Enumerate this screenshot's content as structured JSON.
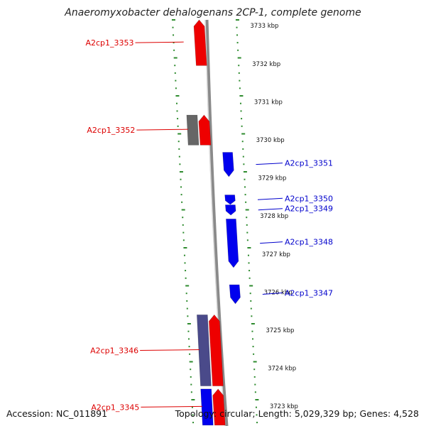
{
  "title": "Anaeromyxobacter dehalogenans 2CP-1, complete genome",
  "footer": {
    "accession": "Accession: NC_011891",
    "summary": "Topology: circular; Length: 5,029,329 bp; Genes: 4,528"
  },
  "colors": {
    "forward_gene": "#ee0000",
    "reverse_gene": "#0000ee",
    "other_gene_grey": "#666666",
    "other_gene_slate": "#4a4a8a",
    "ticks": "#2e8b2e",
    "backbone": "#8a8a8a",
    "forward_label": "#dd0000",
    "reverse_label": "#0000cc"
  },
  "scale": {
    "unit": "kbp",
    "ticks": [
      {
        "kbp": 3733,
        "label": "3733 kbp"
      },
      {
        "kbp": 3732,
        "label": "3732 kbp"
      },
      {
        "kbp": 3731,
        "label": "3731 kbp"
      },
      {
        "kbp": 3730,
        "label": "3730 kbp"
      },
      {
        "kbp": 3729,
        "label": "3729 kbp"
      },
      {
        "kbp": 3728,
        "label": "3728 kbp"
      },
      {
        "kbp": 3727,
        "label": "3727 kbp"
      },
      {
        "kbp": 3726,
        "label": "3726 kbp"
      },
      {
        "kbp": 3725,
        "label": "3725 kbp"
      },
      {
        "kbp": 3724,
        "label": "3724 kbp"
      },
      {
        "kbp": 3723,
        "label": "3723 kbp"
      }
    ]
  },
  "genes": [
    {
      "id": "A2cp1_3353",
      "label": "A2cp1_3353",
      "strand": "forward",
      "lane": 1,
      "start_kbp": 3731.95,
      "end_kbp": 3733.15,
      "color": "red",
      "labeled": true,
      "side": "left"
    },
    {
      "id": "A2cp1_3352",
      "label": "A2cp1_3352",
      "strand": "forward",
      "lane": 1,
      "start_kbp": 3729.86,
      "end_kbp": 3730.65,
      "color": "red",
      "labeled": true,
      "side": "left"
    },
    {
      "id": "A2cp1_3352_companion",
      "label": "",
      "strand": "none",
      "lane": 0,
      "start_kbp": 3729.86,
      "end_kbp": 3730.65,
      "color": "grey",
      "labeled": false,
      "side": "left"
    },
    {
      "id": "A2cp1_3351",
      "label": "A2cp1_3351",
      "strand": "reverse",
      "lane": 2,
      "start_kbp": 3729.03,
      "end_kbp": 3729.67,
      "color": "blue",
      "labeled": true,
      "side": "right"
    },
    {
      "id": "A2cp1_3350",
      "label": "A2cp1_3350",
      "strand": "reverse",
      "lane": 2,
      "start_kbp": 3728.3,
      "end_kbp": 3728.55,
      "color": "blue",
      "labeled": true,
      "side": "right"
    },
    {
      "id": "A2cp1_3349",
      "label": "A2cp1_3349",
      "strand": "reverse",
      "lane": 2,
      "start_kbp": 3728.02,
      "end_kbp": 3728.29,
      "color": "blue",
      "labeled": true,
      "side": "right"
    },
    {
      "id": "A2cp1_3348",
      "label": "A2cp1_3348",
      "strand": "reverse",
      "lane": 2,
      "start_kbp": 3726.64,
      "end_kbp": 3727.92,
      "color": "blue",
      "labeled": true,
      "side": "right"
    },
    {
      "id": "A2cp1_3347",
      "label": "A2cp1_3347",
      "strand": "reverse",
      "lane": 2,
      "start_kbp": 3725.69,
      "end_kbp": 3726.19,
      "color": "blue",
      "labeled": true,
      "side": "right"
    },
    {
      "id": "A2cp1_3346",
      "label": "A2cp1_3346",
      "strand": "forward",
      "lane": 1,
      "start_kbp": 3723.53,
      "end_kbp": 3725.4,
      "color": "red",
      "labeled": true,
      "side": "left"
    },
    {
      "id": "A2cp1_3346_companion",
      "label": "",
      "strand": "none",
      "lane": 0,
      "start_kbp": 3723.53,
      "end_kbp": 3725.4,
      "color": "slate",
      "labeled": false,
      "side": "left"
    },
    {
      "id": "A2cp1_3345",
      "label": "A2cp1_3345",
      "strand": "forward",
      "lane": 1,
      "start_kbp": 3722.5,
      "end_kbp": 3723.45,
      "color": "red",
      "labeled": true,
      "side": "left"
    },
    {
      "id": "A2cp1_3345_companion",
      "label": "",
      "strand": "none",
      "lane": 0,
      "start_kbp": 3722.5,
      "end_kbp": 3723.45,
      "color": "blue",
      "labeled": false,
      "side": "left"
    }
  ]
}
